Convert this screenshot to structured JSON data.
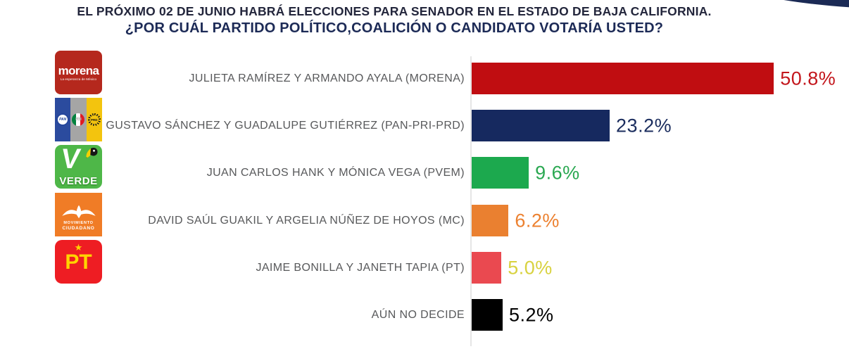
{
  "header": {
    "title_line1": "EL PRÓXIMO 02 DE JUNIO HABRÁ ELECCIONES PARA SENADOR EN EL ESTADO DE BAJA CALIFORNIA.",
    "title_line2": "¿POR CUÁL PARTIDO POLÍTICO,COALICIÓN  O CANDIDATO VOTARÍA USTED?"
  },
  "chart_data": {
    "type": "bar",
    "orientation": "horizontal",
    "title": "¿POR CUÁL PARTIDO POLÍTICO, COALICIÓN O CANDIDATO VOTARÍA USTED?",
    "categories": [
      "JULIETA RAMÍREZ Y ARMANDO AYALA (MORENA)",
      "GUSTAVO SÁNCHEZ  Y GUADALUPE GUTIÉRREZ (PAN-PRI-PRD)",
      "JUAN CARLOS HANK Y MÓNICA VEGA (PVEM)",
      "DAVID SAÚL GUAKIL Y  ARGELIA NÚÑEZ DE HOYOS (MC)",
      "JAIME BONILLA Y JANETH TAPIA (PT)",
      "AÚN NO DECIDE"
    ],
    "values": [
      50.8,
      23.2,
      9.6,
      6.2,
      5.0,
      5.2
    ],
    "value_labels": [
      "50.8%",
      "23.2%",
      "9.6%",
      "6.2%",
      "5.0%",
      "5.2%"
    ],
    "bar_colors": [
      "#c00d11",
      "#16295f",
      "#1ca94e",
      "#ea8030",
      "#ea4950",
      "#000000"
    ],
    "value_label_colors": [
      "#c3161c",
      "#1b2d5e",
      "#2aa851",
      "#ec8130",
      "#d8d23f",
      "#000000"
    ],
    "xlim": [
      0,
      55
    ],
    "grid": false,
    "legend": false,
    "axis_line_color": "#e6e6e6"
  },
  "logos": {
    "morena": {
      "word": "morena",
      "tagline": "La esperanza de México",
      "bg": "#b5281d"
    },
    "coalition": {
      "pan": "PAN",
      "pri": "PRI",
      "prd": "PRD",
      "stripe_colors": [
        "#2b4b9e",
        "#a5a5a5",
        "#f3c40e"
      ]
    },
    "verde": {
      "letter": "V",
      "word": "VERDE",
      "bg": "#4eb748"
    },
    "mc": {
      "line1": "MOVIMIENTO",
      "line2": "CIUDADANO",
      "bg": "#f07c26"
    },
    "pt": {
      "star": "★",
      "word": "PT",
      "bg": "#ee1d23"
    }
  },
  "decoration": {
    "corner_ellipse_color": "#1b2a55"
  }
}
